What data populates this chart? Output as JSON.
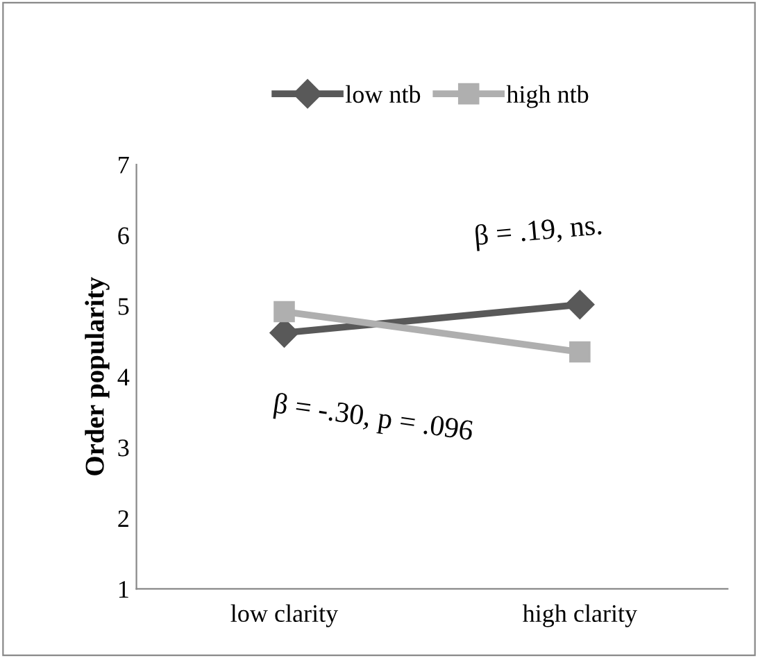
{
  "chart_data": {
    "type": "line",
    "ylabel": "Order popularity",
    "categories": [
      "low clarity",
      "high clarity"
    ],
    "series": [
      {
        "name": "low ntb",
        "color": "#595959",
        "values": [
          4.62,
          5.02
        ],
        "marker": "diamond"
      },
      {
        "name": "high ntb",
        "color": "#afafaf",
        "values": [
          4.92,
          4.35
        ],
        "marker": "square"
      }
    ],
    "ylim": [
      1,
      7
    ],
    "yticks": [
      1,
      2,
      3,
      4,
      5,
      6,
      7
    ],
    "grid": false,
    "legend": "top",
    "annotations": [
      "β = .19, ns.",
      "β = -.30, p = .096"
    ]
  }
}
